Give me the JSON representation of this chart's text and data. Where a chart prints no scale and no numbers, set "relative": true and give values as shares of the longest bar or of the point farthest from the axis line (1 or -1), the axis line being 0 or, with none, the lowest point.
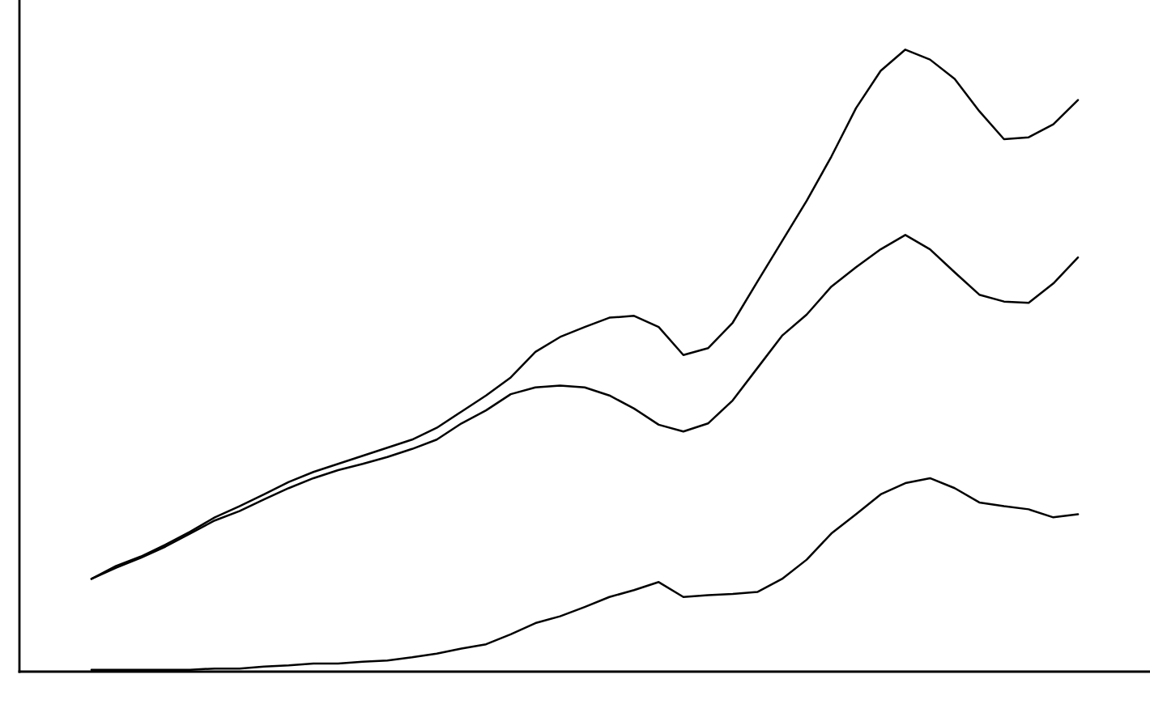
{
  "chart_data": {
    "type": "line",
    "relative": true,
    "categories": [
      null,
      null,
      null,
      null,
      null,
      null,
      null,
      null,
      null,
      null,
      null,
      null,
      null,
      null,
      null,
      null,
      null,
      null,
      null,
      null,
      null,
      null,
      null,
      null,
      null,
      null,
      null,
      null,
      null,
      null,
      null,
      null,
      null,
      null,
      null,
      null,
      null,
      null,
      null,
      null,
      null
    ],
    "series": [
      {
        "color": "#000000",
        "values": [
          0.149,
          0.17,
          0.185,
          0.204,
          0.225,
          0.248,
          0.266,
          0.285,
          0.305,
          0.321,
          0.334,
          0.347,
          0.36,
          0.373,
          0.392,
          0.418,
          0.444,
          0.473,
          0.514,
          0.538,
          0.554,
          0.569,
          0.572,
          0.554,
          0.509,
          0.52,
          0.561,
          0.627,
          0.692,
          0.757,
          0.828,
          0.906,
          0.966,
          1.0,
          0.984,
          0.953,
          0.901,
          0.856,
          0.859,
          0.88,
          0.919
        ]
      },
      {
        "color": "#000000",
        "values": [
          0.149,
          0.167,
          0.183,
          0.201,
          0.222,
          0.243,
          0.258,
          0.277,
          0.295,
          0.311,
          0.324,
          0.334,
          0.345,
          0.358,
          0.373,
          0.399,
          0.42,
          0.446,
          0.457,
          0.46,
          0.457,
          0.444,
          0.423,
          0.397,
          0.386,
          0.399,
          0.436,
          0.488,
          0.54,
          0.574,
          0.619,
          0.65,
          0.679,
          0.702,
          0.679,
          0.642,
          0.606,
          0.595,
          0.593,
          0.624,
          0.666
        ]
      },
      {
        "color": "#000000",
        "values": [
          0.003,
          0.003,
          0.003,
          0.003,
          0.003,
          0.005,
          0.005,
          0.008,
          0.01,
          0.013,
          0.013,
          0.016,
          0.018,
          0.023,
          0.029,
          0.037,
          0.044,
          0.06,
          0.078,
          0.089,
          0.104,
          0.12,
          0.131,
          0.144,
          0.12,
          0.123,
          0.125,
          0.128,
          0.149,
          0.18,
          0.222,
          0.253,
          0.285,
          0.303,
          0.311,
          0.295,
          0.272,
          0.266,
          0.261,
          0.248,
          0.253
        ]
      }
    ]
  }
}
